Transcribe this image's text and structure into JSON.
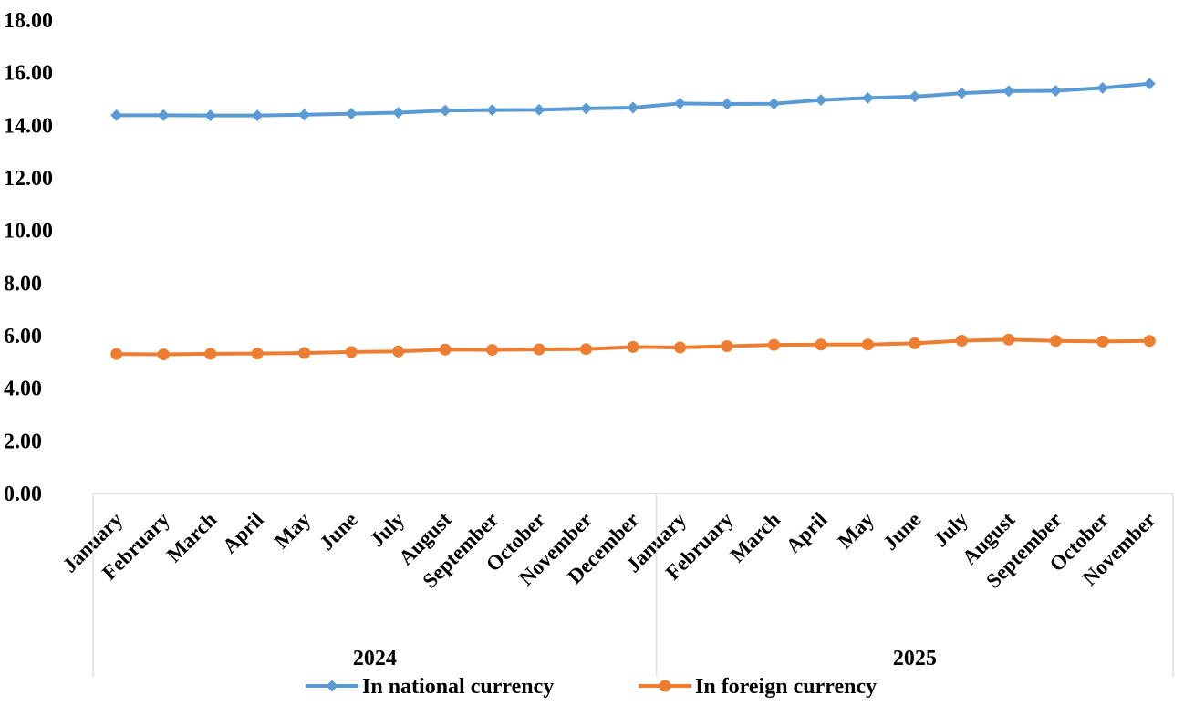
{
  "chart_data": {
    "type": "line",
    "title": "",
    "xlabel": "",
    "ylabel": "",
    "ylim": [
      0,
      18
    ],
    "y_ticks": [
      "0.00",
      "2.00",
      "4.00",
      "6.00",
      "8.00",
      "10.00",
      "12.00",
      "14.00",
      "16.00",
      "18.00"
    ],
    "grid": false,
    "legend_position": "bottom",
    "categories": [
      "January",
      "February",
      "March",
      "April",
      "May",
      "June",
      "July",
      "August",
      "September",
      "October",
      "November",
      "December",
      "January",
      "February",
      "March",
      "April",
      "May",
      "June",
      "July",
      "August",
      "September",
      "October",
      "November"
    ],
    "groups": [
      {
        "label": "2024",
        "count": 12
      },
      {
        "label": "2025",
        "count": 11
      }
    ],
    "series": [
      {
        "name": "In national currency",
        "color": "#5b9bd5",
        "marker": "diamond",
        "values": [
          14.38,
          14.38,
          14.37,
          14.37,
          14.4,
          14.44,
          14.48,
          14.56,
          14.58,
          14.59,
          14.64,
          14.67,
          14.83,
          14.81,
          14.82,
          14.96,
          15.04,
          15.09,
          15.22,
          15.3,
          15.31,
          15.42,
          15.58
        ]
      },
      {
        "name": "In foreign currency",
        "color": "#ed7d31",
        "marker": "circle",
        "values": [
          5.3,
          5.29,
          5.31,
          5.32,
          5.34,
          5.38,
          5.4,
          5.47,
          5.46,
          5.48,
          5.49,
          5.57,
          5.55,
          5.6,
          5.65,
          5.66,
          5.66,
          5.71,
          5.81,
          5.85,
          5.8,
          5.78,
          5.8
        ]
      }
    ]
  }
}
